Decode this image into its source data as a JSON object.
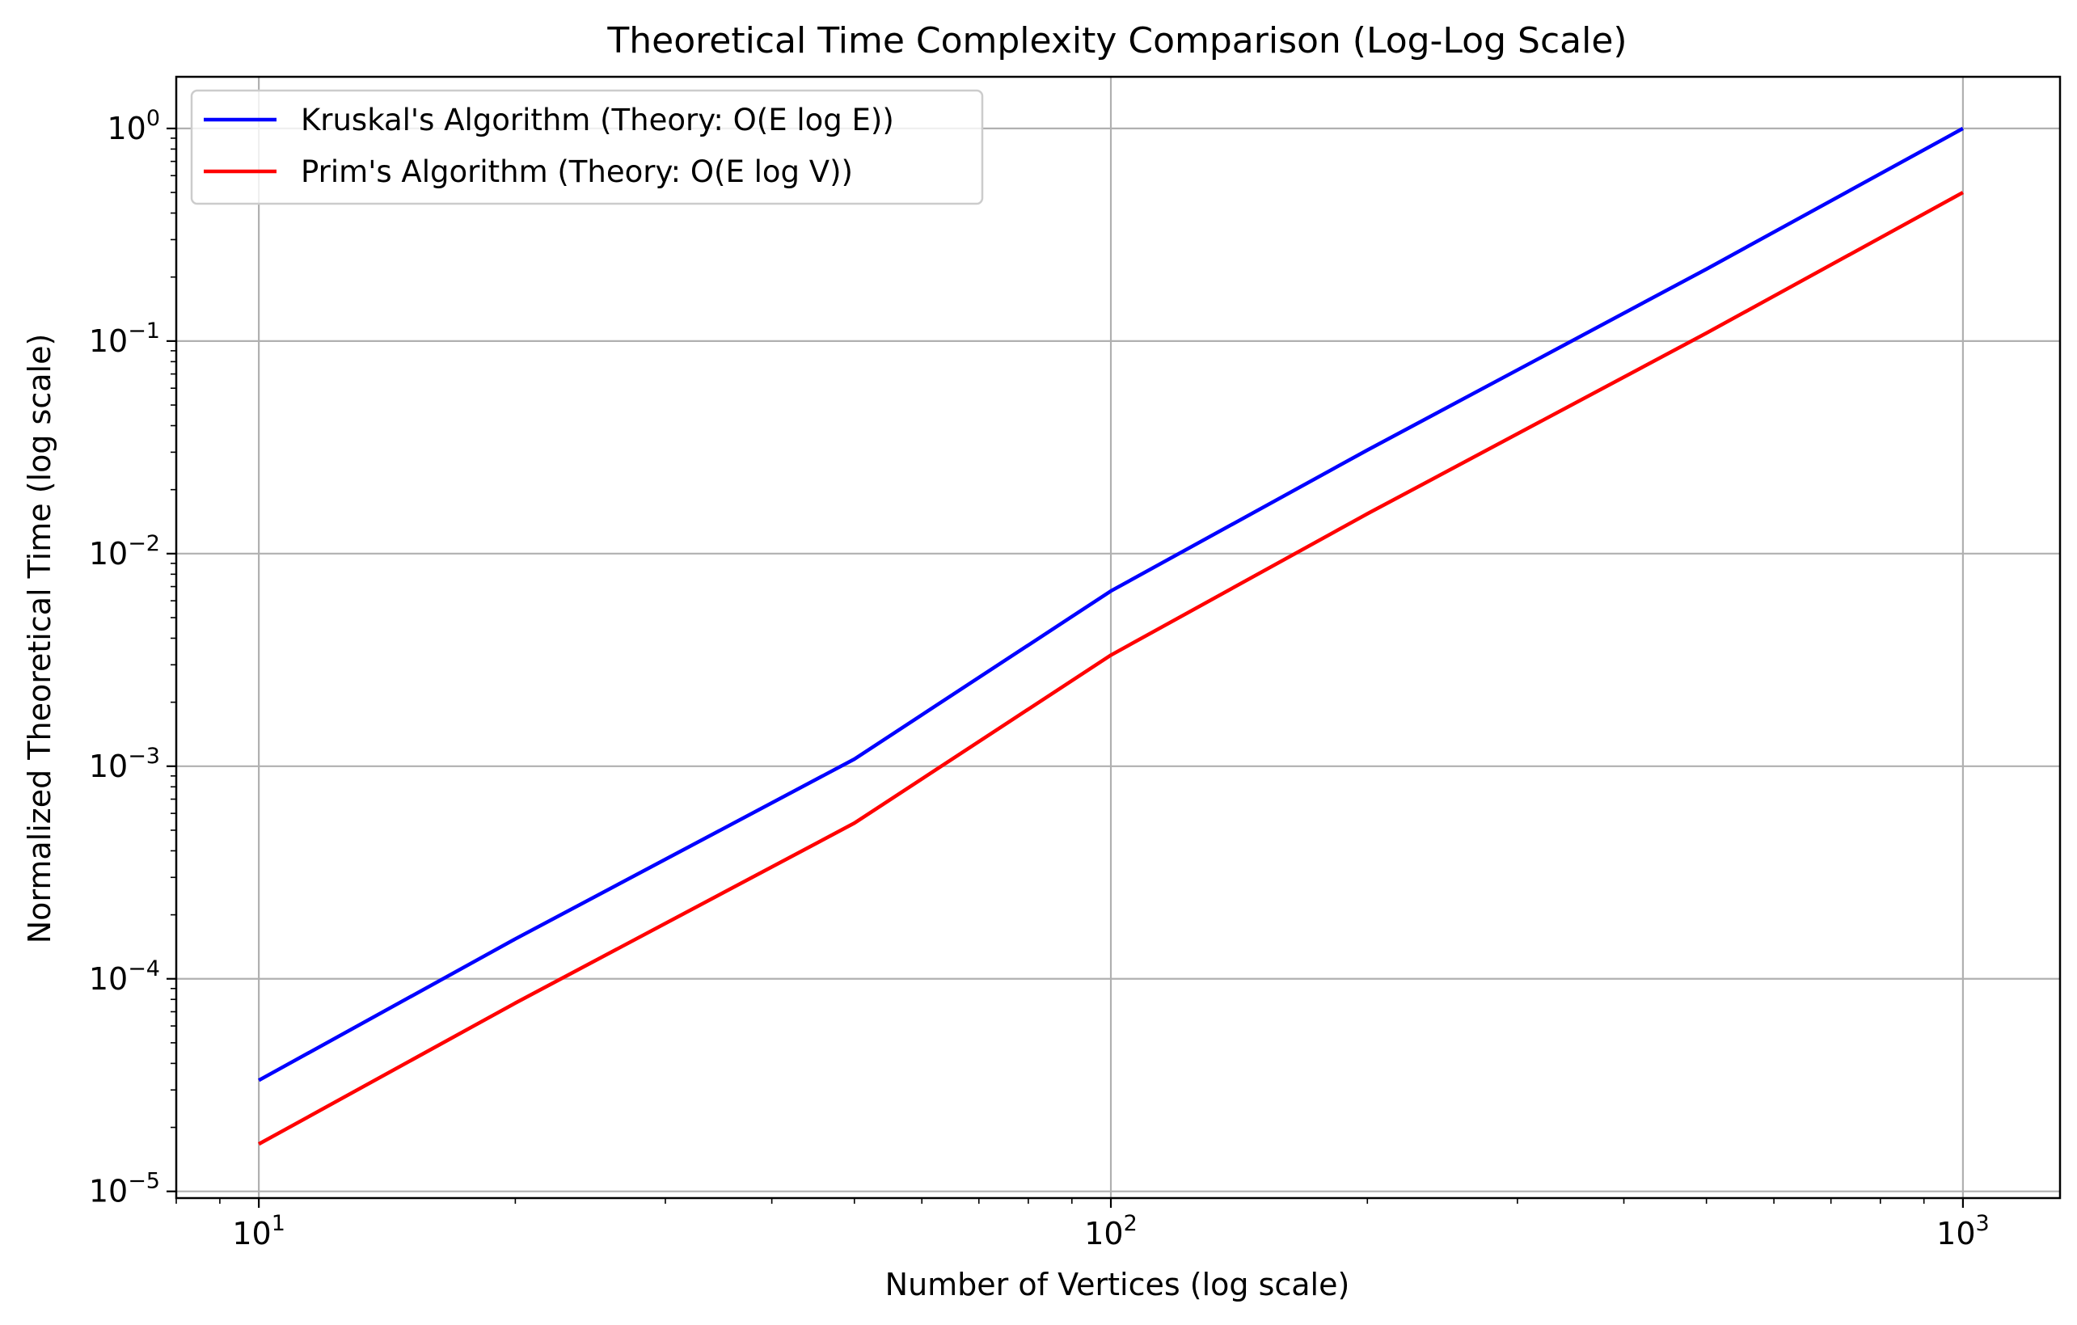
{
  "chart_data": {
    "type": "line",
    "title": "Theoretical Time Complexity Comparison (Log-Log Scale)",
    "xlabel": "Number of Vertices (log scale)",
    "ylabel": "Normalized Theoretical Time (log scale)",
    "xscale": "log",
    "yscale": "log",
    "xlim": [
      8,
      1300
    ],
    "ylim": [
      9.3e-06,
      1.75
    ],
    "grid": true,
    "legend_position": "upper-left",
    "x_ticks": [
      {
        "value": 10,
        "base": "10",
        "exp": "1"
      },
      {
        "value": 100,
        "base": "10",
        "exp": "2"
      },
      {
        "value": 1000,
        "base": "10",
        "exp": "3"
      }
    ],
    "y_ticks": [
      {
        "value": 1e-05,
        "base": "10",
        "exp": "−5"
      },
      {
        "value": 0.0001,
        "base": "10",
        "exp": "−4"
      },
      {
        "value": 0.001,
        "base": "10",
        "exp": "−3"
      },
      {
        "value": 0.01,
        "base": "10",
        "exp": "−2"
      },
      {
        "value": 0.1,
        "base": "10",
        "exp": "−1"
      },
      {
        "value": 1,
        "base": "10",
        "exp": "0"
      }
    ],
    "series": [
      {
        "name": "Kruskal's Algorithm (Theory: O(E log E))",
        "color": "#0000ff",
        "x": [
          10,
          20,
          50,
          100,
          200,
          500,
          1000
        ],
        "y": [
          3.33e-05,
          0.000154,
          0.00108,
          0.00667,
          0.0307,
          0.218,
          1.0
        ]
      },
      {
        "name": "Prim's Algorithm (Theory: O(E log V))",
        "color": "#ff0000",
        "x": [
          10,
          20,
          50,
          100,
          200,
          500,
          1000
        ],
        "y": [
          1.67e-05,
          7.69e-05,
          0.00054,
          0.00333,
          0.0154,
          0.109,
          0.5
        ]
      }
    ]
  }
}
